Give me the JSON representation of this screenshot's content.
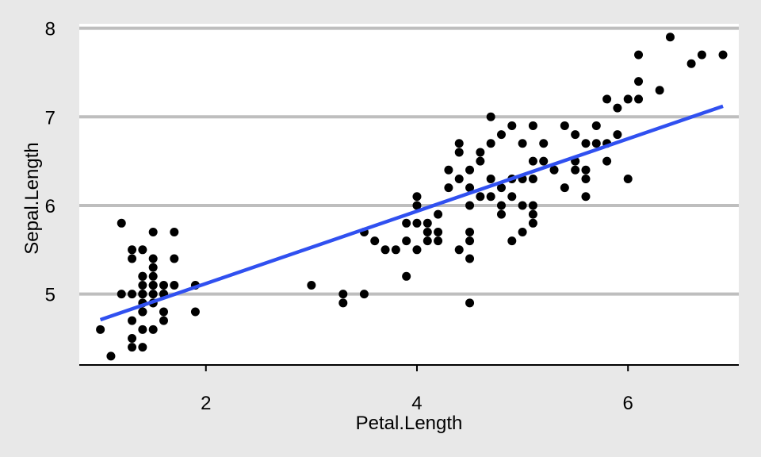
{
  "chart_data": {
    "type": "scatter",
    "title": "",
    "xlabel": "Petal.Length",
    "ylabel": "Sepal.Length",
    "xlim": [
      0.8,
      7.05
    ],
    "ylim": [
      4.2,
      8.05
    ],
    "xticks": [
      2,
      4,
      6
    ],
    "yticks": [
      5,
      6,
      7,
      8
    ],
    "x_tick_labels": [
      "2",
      "4",
      "6"
    ],
    "y_tick_labels": [
      "5",
      "6",
      "7",
      "8"
    ],
    "grid": "horizontal major gridlines",
    "legend": "none",
    "colors": {
      "background": "#e8e8e8",
      "panel": "#ffffff",
      "grid": "#bebebe",
      "points": "#000000",
      "trend": "#3050f0"
    },
    "series": [
      {
        "type": "scatter",
        "points": [
          [
            1.1,
            4.3
          ],
          [
            1.0,
            4.6
          ],
          [
            1.3,
            4.4
          ],
          [
            1.4,
            4.4
          ],
          [
            1.3,
            4.5
          ],
          [
            1.4,
            4.6
          ],
          [
            1.5,
            4.6
          ],
          [
            1.6,
            4.7
          ],
          [
            1.3,
            4.7
          ],
          [
            1.4,
            4.8
          ],
          [
            1.4,
            4.8
          ],
          [
            1.6,
            4.8
          ],
          [
            1.9,
            4.8
          ],
          [
            1.4,
            4.9
          ],
          [
            1.5,
            4.9
          ],
          [
            1.5,
            4.9
          ],
          [
            1.4,
            5.0
          ],
          [
            1.5,
            5.0
          ],
          [
            1.6,
            5.0
          ],
          [
            1.3,
            5.0
          ],
          [
            1.2,
            5.0
          ],
          [
            1.4,
            5.0
          ],
          [
            1.6,
            5.0
          ],
          [
            1.4,
            5.1
          ],
          [
            1.5,
            5.1
          ],
          [
            1.6,
            5.1
          ],
          [
            1.7,
            5.1
          ],
          [
            1.9,
            5.1
          ],
          [
            1.5,
            5.1
          ],
          [
            1.4,
            5.2
          ],
          [
            1.5,
            5.2
          ],
          [
            1.4,
            5.2
          ],
          [
            1.5,
            5.3
          ],
          [
            1.3,
            5.4
          ],
          [
            1.5,
            5.4
          ],
          [
            1.7,
            5.4
          ],
          [
            1.3,
            5.5
          ],
          [
            1.4,
            5.5
          ],
          [
            1.5,
            5.7
          ],
          [
            1.7,
            5.7
          ],
          [
            1.2,
            5.8
          ],
          [
            3.0,
            5.1
          ],
          [
            3.3,
            4.9
          ],
          [
            3.3,
            5.0
          ],
          [
            3.5,
            5.0
          ],
          [
            3.5,
            5.7
          ],
          [
            3.6,
            5.6
          ],
          [
            3.7,
            5.5
          ],
          [
            3.8,
            5.5
          ],
          [
            3.9,
            5.2
          ],
          [
            3.9,
            5.6
          ],
          [
            3.9,
            5.8
          ],
          [
            4.0,
            5.5
          ],
          [
            4.0,
            5.8
          ],
          [
            4.0,
            6.0
          ],
          [
            4.0,
            6.1
          ],
          [
            4.1,
            5.6
          ],
          [
            4.1,
            5.7
          ],
          [
            4.1,
            5.8
          ],
          [
            4.2,
            5.6
          ],
          [
            4.2,
            5.7
          ],
          [
            4.2,
            5.9
          ],
          [
            4.3,
            6.2
          ],
          [
            4.3,
            6.4
          ],
          [
            4.4,
            5.5
          ],
          [
            4.4,
            6.3
          ],
          [
            4.4,
            6.6
          ],
          [
            4.4,
            6.7
          ],
          [
            4.5,
            4.9
          ],
          [
            4.5,
            5.4
          ],
          [
            4.5,
            5.6
          ],
          [
            4.5,
            5.7
          ],
          [
            4.5,
            6.0
          ],
          [
            4.5,
            6.2
          ],
          [
            4.5,
            6.4
          ],
          [
            4.6,
            6.1
          ],
          [
            4.6,
            6.5
          ],
          [
            4.6,
            6.6
          ],
          [
            4.7,
            6.1
          ],
          [
            4.7,
            6.3
          ],
          [
            4.7,
            6.7
          ],
          [
            4.7,
            7.0
          ],
          [
            4.8,
            5.9
          ],
          [
            4.8,
            6.0
          ],
          [
            4.8,
            6.2
          ],
          [
            4.8,
            6.8
          ],
          [
            4.9,
            5.6
          ],
          [
            4.9,
            6.1
          ],
          [
            4.9,
            6.3
          ],
          [
            4.9,
            6.9
          ],
          [
            5.0,
            5.7
          ],
          [
            5.0,
            6.0
          ],
          [
            5.0,
            6.3
          ],
          [
            5.0,
            6.7
          ],
          [
            5.1,
            5.8
          ],
          [
            5.1,
            5.9
          ],
          [
            5.1,
            6.0
          ],
          [
            5.1,
            6.3
          ],
          [
            5.1,
            6.5
          ],
          [
            5.1,
            6.9
          ],
          [
            5.2,
            6.5
          ],
          [
            5.2,
            6.7
          ],
          [
            5.3,
            6.4
          ],
          [
            5.4,
            6.2
          ],
          [
            5.4,
            6.9
          ],
          [
            5.5,
            6.4
          ],
          [
            5.5,
            6.5
          ],
          [
            5.5,
            6.8
          ],
          [
            5.6,
            6.1
          ],
          [
            5.6,
            6.3
          ],
          [
            5.6,
            6.4
          ],
          [
            5.6,
            6.7
          ],
          [
            5.7,
            6.7
          ],
          [
            5.7,
            6.9
          ],
          [
            5.8,
            6.5
          ],
          [
            5.8,
            6.7
          ],
          [
            5.8,
            7.2
          ],
          [
            5.9,
            6.8
          ],
          [
            5.9,
            7.1
          ],
          [
            6.0,
            6.3
          ],
          [
            6.0,
            7.2
          ],
          [
            6.1,
            7.2
          ],
          [
            6.1,
            7.4
          ],
          [
            6.1,
            7.7
          ],
          [
            6.3,
            7.3
          ],
          [
            6.4,
            7.9
          ],
          [
            6.6,
            7.6
          ],
          [
            6.7,
            7.7
          ],
          [
            6.9,
            7.7
          ]
        ]
      },
      {
        "type": "line",
        "x": [
          1.0,
          6.9
        ],
        "y": [
          4.71,
          7.12
        ]
      }
    ]
  }
}
